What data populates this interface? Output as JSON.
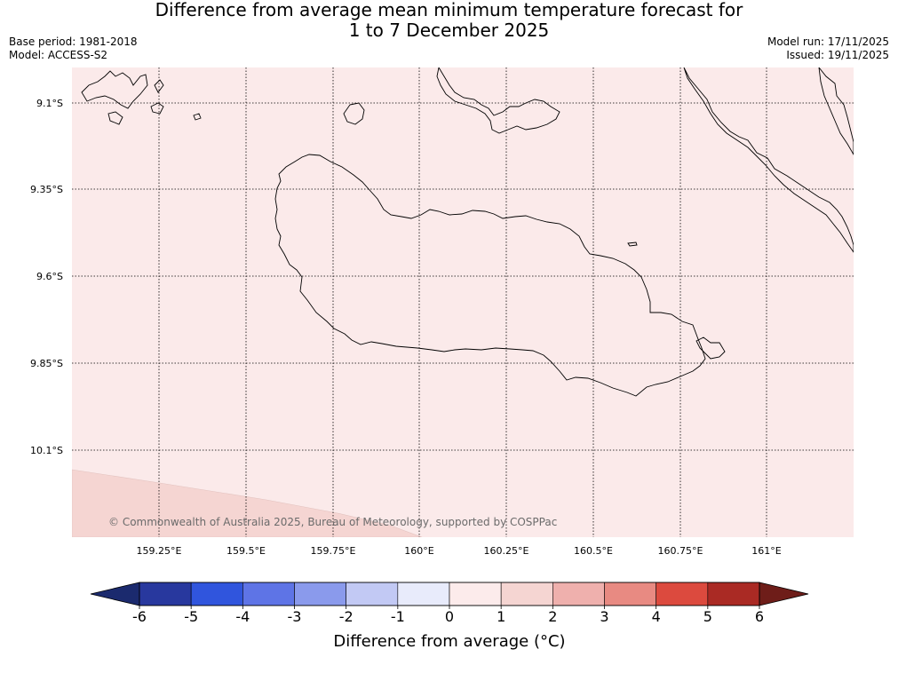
{
  "title": {
    "line1": "Difference from average mean minimum temperature forecast for",
    "line2": "1 to 7 December 2025"
  },
  "info": {
    "base_period": "Base period: 1981-2018",
    "model": "Model: ACCESS-S2",
    "model_run": "Model run: 17/11/2025",
    "issued": "Issued: 19/11/2025"
  },
  "map": {
    "lon_ticks": [
      "159.25°E",
      "159.5°E",
      "159.75°E",
      "160°E",
      "160.25°E",
      "160.5°E",
      "160.75°E",
      "161°E"
    ],
    "lat_ticks": [
      "9.1°S",
      "9.35°S",
      "9.6°S",
      "9.85°S",
      "10.1°S"
    ],
    "copyright": "© Commonwealth of Australia 2025, Bureau of Meteorology, supported by COSPPac",
    "field": {
      "main_band": "0 to 1",
      "main_color": "#fbeaea",
      "southwest_band": "1 to 2",
      "southwest_color": "#f5d5d2"
    }
  },
  "colorbar": {
    "label": "Difference from average (°C)",
    "ticks": [
      "-6",
      "-5",
      "-4",
      "-3",
      "-2",
      "-1",
      "0",
      "1",
      "2",
      "3",
      "4",
      "5",
      "6"
    ],
    "under_color": "#1b2a6e",
    "over_color": "#6e1d19",
    "colors": [
      "#28389e",
      "#3055dd",
      "#5e74e6",
      "#8a9aec",
      "#c2c9f4",
      "#e8ebfb",
      "#fcebeb",
      "#f5d5d2",
      "#efb0ad",
      "#e88a82",
      "#dc4a3e",
      "#aa2a24"
    ]
  }
}
